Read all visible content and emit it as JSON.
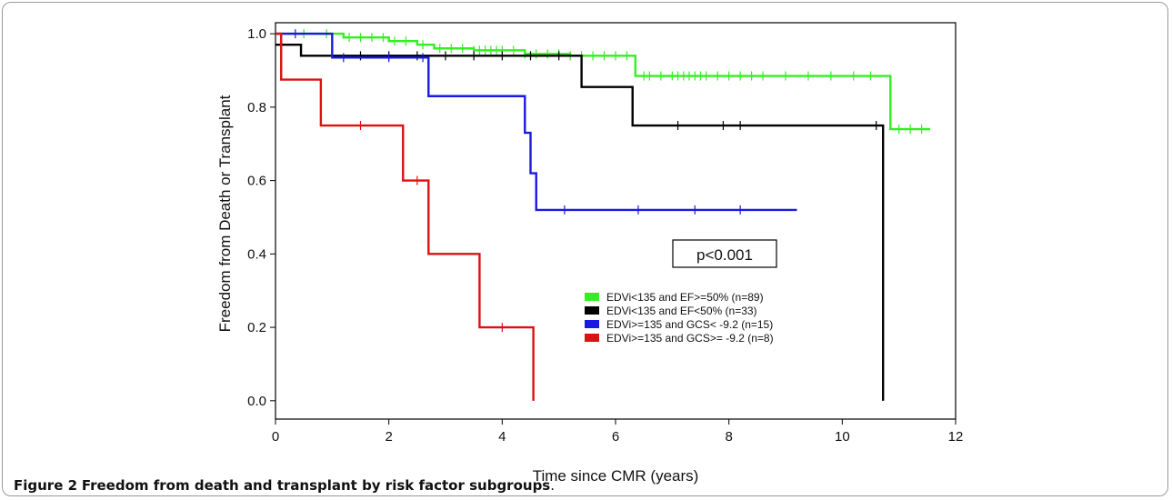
{
  "figure": {
    "label": "Figure 2",
    "text": "Freedom from death and transplant by risk factor subgroups",
    "end": "."
  },
  "chart_data": {
    "type": "line",
    "subtype": "kaplan-meier step curves",
    "xlabel": "Time since CMR (years)",
    "ylabel": "Freedom from Death or Transplant",
    "xlim": [
      0,
      12
    ],
    "ylim": [
      -0.05,
      1.03
    ],
    "xticks": [
      0,
      2,
      4,
      6,
      8,
      10,
      12
    ],
    "yticks": [
      0.0,
      0.2,
      0.4,
      0.6,
      0.8,
      1.0
    ],
    "ytick_labels": [
      "0.0",
      "0.2",
      "0.4",
      "0.6",
      "0.8",
      "1.0"
    ],
    "grid": false,
    "legend_position": "lower-right",
    "annotation": "p<0.001",
    "series": [
      {
        "name": "EDVi<135 and EF>=50% (n=89)",
        "color": "#33ee22",
        "steps": [
          [
            0,
            1.0
          ],
          [
            1.2,
            0.99
          ],
          [
            2.0,
            0.98
          ],
          [
            2.5,
            0.97
          ],
          [
            2.8,
            0.96
          ],
          [
            3.5,
            0.955
          ],
          [
            4.4,
            0.945
          ],
          [
            5.2,
            0.94
          ],
          [
            6.35,
            0.885
          ],
          [
            10.85,
            0.74
          ],
          [
            11.55,
            0.74
          ]
        ],
        "censor_x": [
          0.5,
          0.9,
          1.3,
          1.5,
          1.7,
          1.9,
          2.1,
          2.3,
          2.6,
          2.9,
          3.1,
          3.3,
          3.5,
          3.6,
          3.7,
          3.8,
          3.9,
          4.0,
          4.2,
          4.4,
          4.6,
          4.8,
          5.0,
          5.2,
          5.4,
          5.6,
          5.8,
          6.0,
          6.2,
          6.5,
          6.6,
          6.8,
          7.0,
          7.1,
          7.2,
          7.3,
          7.4,
          7.5,
          7.6,
          7.8,
          8.0,
          8.2,
          8.4,
          8.6,
          9.0,
          9.4,
          9.8,
          10.2,
          10.5,
          11.0,
          11.2,
          11.4
        ]
      },
      {
        "name": "EDVi<135 and EF<50% (n=33)",
        "color": "#000000",
        "steps": [
          [
            0,
            0.97
          ],
          [
            0.45,
            0.94
          ],
          [
            5.4,
            0.855
          ],
          [
            6.3,
            0.75
          ],
          [
            10.72,
            0.0
          ]
        ],
        "censor_x": [
          1.5,
          2.0,
          2.5,
          3.0,
          3.5,
          4.0,
          4.5,
          5.0,
          7.1,
          7.9,
          8.2,
          10.6
        ]
      },
      {
        "name": "EDVi>=135 and GCS< -9.2 (n=15)",
        "color": "#1a1adf",
        "steps": [
          [
            0,
            1.0
          ],
          [
            1.0,
            0.935
          ],
          [
            2.7,
            0.83
          ],
          [
            4.4,
            0.73
          ],
          [
            4.5,
            0.62
          ],
          [
            4.6,
            0.52
          ],
          [
            9.2,
            0.52
          ]
        ],
        "censor_x": [
          0.35,
          1.2,
          2.0,
          2.6,
          5.1,
          6.4,
          7.4,
          8.2
        ]
      },
      {
        "name": "EDVi>=135 and GCS>= -9.2 (n=8)",
        "color": "#dd1111",
        "steps": [
          [
            0,
            1.0
          ],
          [
            0.1,
            0.875
          ],
          [
            0.8,
            0.75
          ],
          [
            2.25,
            0.6
          ],
          [
            2.7,
            0.4
          ],
          [
            3.6,
            0.2
          ],
          [
            4.55,
            0.0
          ]
        ],
        "censor_x": [
          1.5,
          2.5,
          4.0
        ]
      }
    ]
  }
}
